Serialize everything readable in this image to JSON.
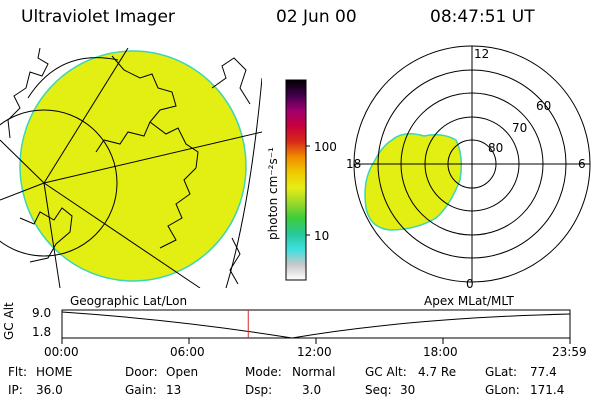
{
  "header": {
    "instrument": "Ultraviolet Imager",
    "date": "02 Jun 00",
    "time": "08:47:51 UT"
  },
  "colorbar": {
    "unit_label": "photon cm⁻²s⁻¹",
    "ticks": [
      "100",
      "10"
    ],
    "stops": [
      "#ffffff",
      "#c8c8c8",
      "#3ce0e0",
      "#28c89a",
      "#3ccc3c",
      "#9ad82a",
      "#e6ee14",
      "#f0c800",
      "#f08c00",
      "#d82a1a",
      "#c8003c",
      "#a0006e",
      "#40004c",
      "#000000"
    ]
  },
  "polar": {
    "labels": {
      "top": "12",
      "right": "6",
      "left": "18",
      "bottom": "0"
    },
    "ring_labels": [
      "60",
      "70",
      "80"
    ]
  },
  "panel_labels": {
    "left": "Geographic Lat/Lon",
    "right": "Apex MLat/MLT"
  },
  "altitude_plot": {
    "ylabel": "GC Alt",
    "yticks": [
      "9.0",
      "1.8"
    ],
    "xticks": [
      "00:00",
      "06:00",
      "12:00",
      "18:00",
      "23:59"
    ],
    "marker_time_hours": 8.8
  },
  "status": {
    "row1": [
      {
        "k": "Flt:",
        "v": "HOME"
      },
      {
        "k": "Door:",
        "v": "Open"
      },
      {
        "k": "Mode:",
        "v": "Normal"
      },
      {
        "k": "GC Alt:",
        "v": "4.7 Re"
      },
      {
        "k": "GLat:",
        "v": "77.4"
      }
    ],
    "row2": [
      {
        "k": "IP:",
        "v": "36.0"
      },
      {
        "k": "Gain:",
        "v": "13"
      },
      {
        "k": "Dsp:",
        "v": "3.0"
      },
      {
        "k": "Seq:",
        "v": "30"
      },
      {
        "k": "GLon:",
        "v": "171.4"
      }
    ]
  },
  "colors": {
    "emission": "#e3ee12",
    "emission_edge": "#3cd6b4",
    "marker": "#d03030"
  }
}
